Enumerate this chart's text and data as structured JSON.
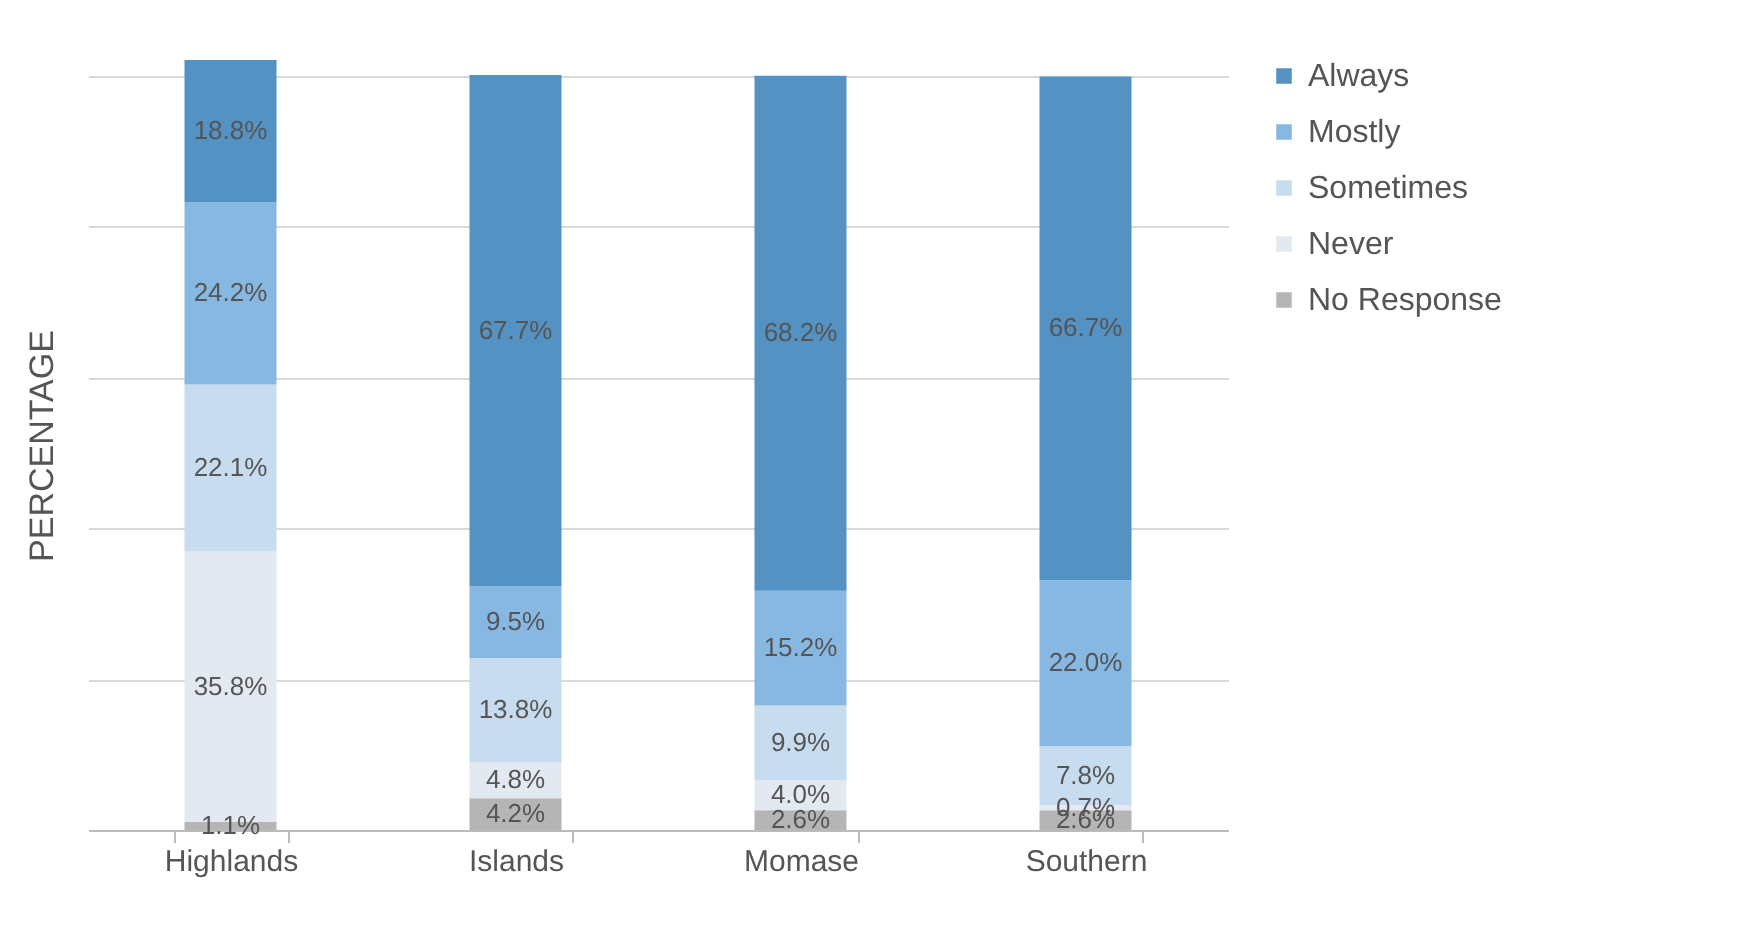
{
  "chart_data": {
    "type": "bar",
    "stacked": true,
    "ylabel": "PERCENTAGE",
    "categories": [
      "Highlands",
      "Islands",
      "Momase",
      "Southern"
    ],
    "series": [
      {
        "name": "No Response",
        "color": "#b5b5b5",
        "values": [
          1.1,
          4.2,
          2.6,
          2.6
        ],
        "value_labels": [
          "1.1%",
          "4.2%",
          "2.6%",
          "2.6%"
        ]
      },
      {
        "name": "Never",
        "color": "#e3e9f1",
        "values": [
          35.8,
          4.8,
          4.0,
          0.7
        ],
        "value_labels": [
          "35.8%",
          "4.8%",
          "4.0%",
          "0.7%"
        ]
      },
      {
        "name": "Sometimes",
        "color": "#c7dcef",
        "values": [
          22.1,
          13.8,
          9.9,
          7.8
        ],
        "value_labels": [
          "22.1%",
          "13.8%",
          "9.9%",
          "7.8%"
        ]
      },
      {
        "name": "Mostly",
        "color": "#86b8e2",
        "values": [
          24.2,
          9.5,
          15.2,
          22.0
        ],
        "value_labels": [
          "24.2%",
          "9.5%",
          "15.2%",
          "22.0%"
        ]
      },
      {
        "name": "Always",
        "color": "#5392c3",
        "values": [
          18.8,
          67.7,
          68.2,
          66.7
        ],
        "value_labels": [
          "18.8%",
          "67.7%",
          "68.2%",
          "66.7%"
        ]
      }
    ],
    "ylim": [
      0,
      102
    ],
    "yticks": [
      {
        "value": 0,
        "label": null
      },
      {
        "value": 20,
        "label": null
      },
      {
        "value": 40,
        "label": null
      },
      {
        "value": 60,
        "label": null
      },
      {
        "value": 80,
        "label": null
      },
      {
        "value": 100,
        "label": null
      }
    ],
    "tick_labels": "x",
    "grid": "y",
    "legend": "right"
  }
}
